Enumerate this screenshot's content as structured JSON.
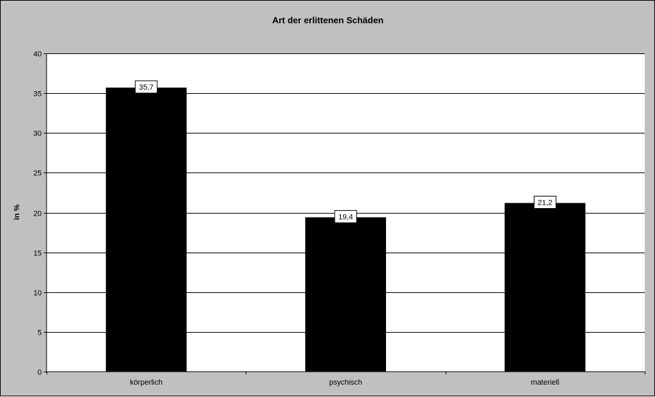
{
  "chart_data": {
    "type": "bar",
    "title": "Art der erlittenen Schäden",
    "xlabel": "",
    "ylabel": "in %",
    "categories": [
      "körperlich",
      "psychisch",
      "materiell"
    ],
    "values": [
      35.7,
      19.4,
      21.2
    ],
    "data_labels": [
      "35,7",
      "19,4",
      "21,2"
    ],
    "ylim": [
      0,
      40
    ],
    "yticks": [
      0,
      5,
      10,
      15,
      20,
      25,
      30,
      35,
      40
    ],
    "grid": true,
    "legend": "none",
    "colors": {
      "bar": "#000000",
      "plot_background": "#ffffff",
      "chart_background": "#c0c0c0",
      "gridline": "#000000"
    }
  }
}
